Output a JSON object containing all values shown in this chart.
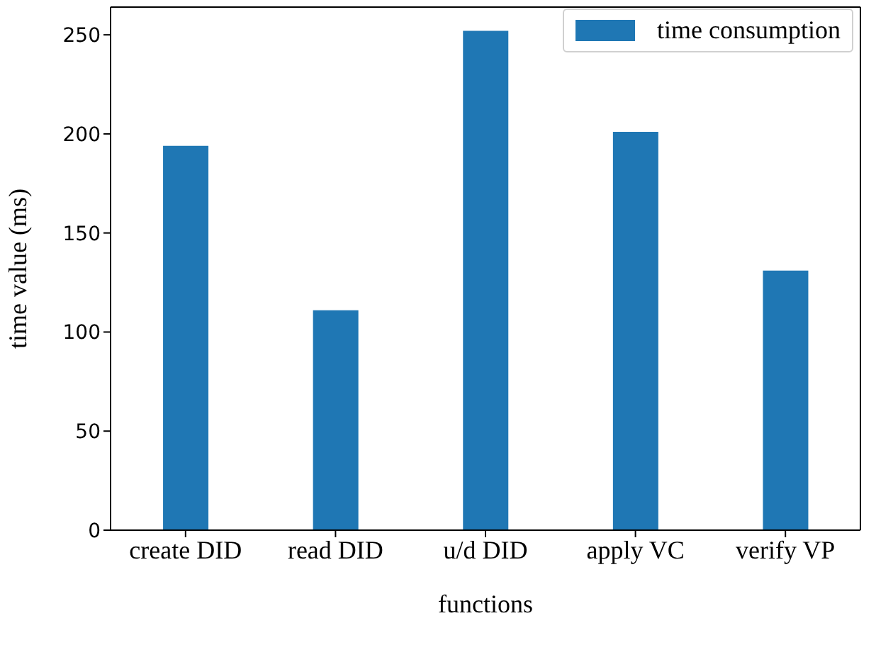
{
  "chart_data": {
    "type": "bar",
    "xlabel": "functions",
    "ylabel": "time value (ms)",
    "categories": [
      "create DID",
      "read DID",
      "u/d DID",
      "apply VC",
      "verify VP"
    ],
    "series": [
      {
        "name": "time consumption",
        "color": "#1f77b4",
        "values": [
          194,
          111,
          252,
          201,
          131
        ]
      }
    ],
    "ylim": [
      0,
      264
    ],
    "yticks": [
      0,
      50,
      100,
      150,
      200,
      250
    ],
    "grid": false,
    "legend": "top right"
  }
}
